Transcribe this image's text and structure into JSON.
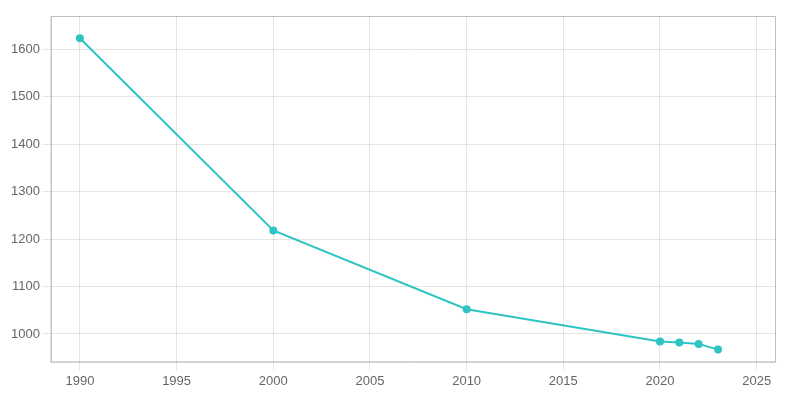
{
  "chart_data": {
    "type": "line",
    "x": [
      1990,
      2000,
      2010,
      2020,
      2021,
      2022,
      2023
    ],
    "values": [
      1623,
      1218,
      1052,
      984,
      982,
      979,
      967
    ],
    "color": "#2ec4c4",
    "marker": "circle",
    "xlim": [
      1988.5,
      2026
    ],
    "ylim": [
      940,
      1670
    ],
    "xticks": [
      1990,
      1995,
      2000,
      2005,
      2010,
      2015,
      2020,
      2025
    ],
    "yticks": [
      1000,
      1100,
      1200,
      1300,
      1400,
      1500,
      1600
    ],
    "grid": true
  }
}
